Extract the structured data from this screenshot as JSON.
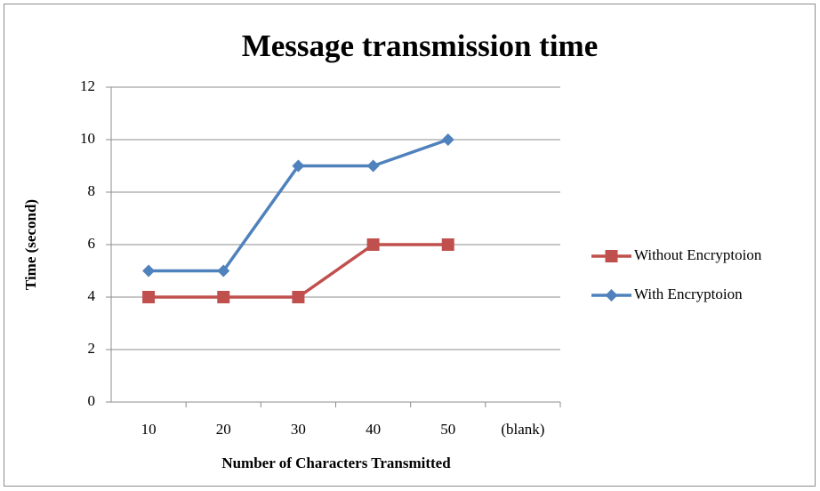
{
  "chart_data": {
    "type": "line",
    "title": "Message transmission time",
    "x_label": "Number of  Characters Transmitted",
    "y_label": "Time (second)",
    "categories": [
      "10",
      "20",
      "30",
      "40",
      "50",
      "(blank)"
    ],
    "series": [
      {
        "name": "Without Encryptoion",
        "color": "#c0504d",
        "marker": "square",
        "values": [
          4,
          4,
          4,
          6,
          6,
          null
        ]
      },
      {
        "name": "With Encryptoion",
        "color": "#4f81bd",
        "marker": "diamond",
        "values": [
          5,
          5,
          9,
          9,
          10,
          null
        ]
      }
    ],
    "ylim": [
      0,
      12
    ],
    "yticks": [
      0,
      2,
      4,
      6,
      8,
      10,
      12
    ],
    "grid": true,
    "legend": "right"
  }
}
